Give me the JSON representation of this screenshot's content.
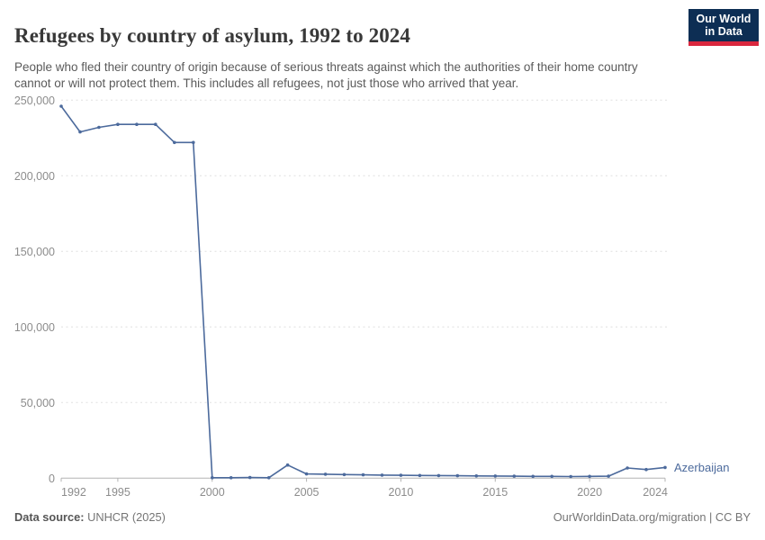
{
  "header": {
    "title": "Refugees by country of asylum, 1992 to 2024",
    "subtitle": "People who fled their country of origin because of serious threats against which the authorities of their home country cannot or will not protect them. This includes all refugees, not just those who arrived that year.",
    "logo": {
      "line1": "Our World",
      "line2": "in Data",
      "bg_color": "#0d2e54",
      "stripe_color": "#d9273e"
    }
  },
  "chart_data": {
    "type": "line",
    "title": "Refugees by country of asylum, 1992 to 2024",
    "xlabel": "",
    "ylabel": "",
    "xlim": [
      1992,
      2024
    ],
    "ylim": [
      0,
      250000
    ],
    "grid": "horizontal-dashed",
    "legend_position": "end-of-line-label",
    "x_ticks": [
      1992,
      1995,
      2000,
      2005,
      2010,
      2015,
      2020,
      2024
    ],
    "x_tick_labels": [
      "1992",
      "1995",
      "2000",
      "2005",
      "2010",
      "2015",
      "2020",
      "2024"
    ],
    "y_ticks": [
      0,
      50000,
      100000,
      150000,
      200000,
      250000
    ],
    "y_tick_labels": [
      "0",
      "50,000",
      "100,000",
      "150,000",
      "200,000",
      "250,000"
    ],
    "series": [
      {
        "name": "Azerbaijan",
        "color": "#4c6a9c",
        "x": [
          1992,
          1993,
          1994,
          1995,
          1996,
          1997,
          1998,
          1999,
          2000,
          2001,
          2002,
          2003,
          2004,
          2005,
          2006,
          2007,
          2008,
          2009,
          2010,
          2011,
          2012,
          2013,
          2014,
          2015,
          2016,
          2017,
          2018,
          2019,
          2020,
          2021,
          2022,
          2023,
          2024
        ],
        "values": [
          246000,
          229000,
          232000,
          234000,
          234000,
          234000,
          222000,
          222000,
          300,
          300,
          400,
          300,
          8700,
          2800,
          2600,
          2400,
          2200,
          2000,
          1900,
          1800,
          1700,
          1600,
          1500,
          1400,
          1300,
          1200,
          1200,
          1100,
          1200,
          1300,
          6700,
          5700,
          7100
        ]
      }
    ]
  },
  "footer": {
    "source_label": "Data source:",
    "source_value": " UNHCR (2025)",
    "credit": "OurWorldinData.org/migration | CC BY"
  },
  "colors": {
    "axis": "#b3b3b3",
    "gridline": "#e0e0e0",
    "tick_text": "#8c8c8c"
  }
}
